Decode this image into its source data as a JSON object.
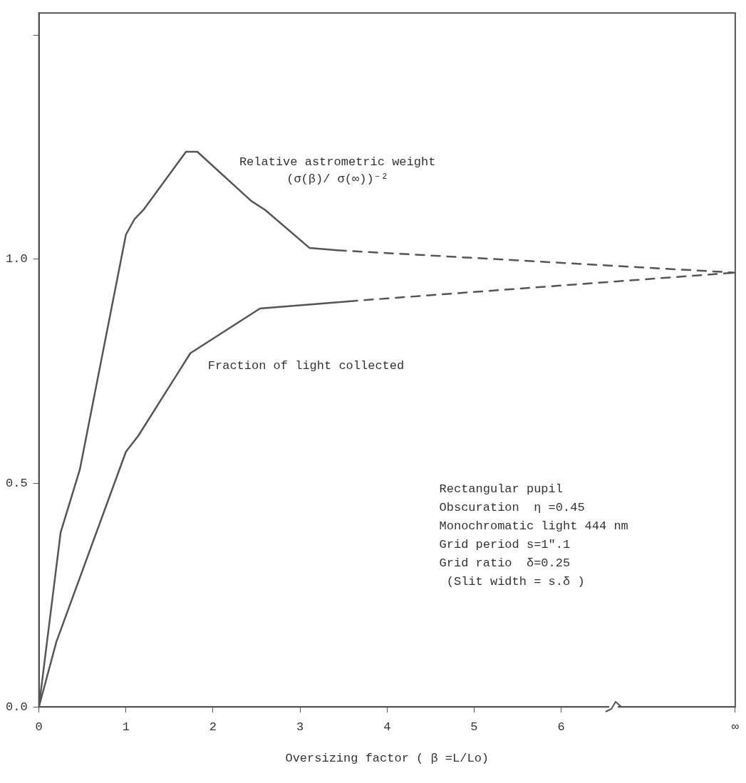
{
  "chart_data": {
    "type": "line",
    "xlabel": "Oversizing factor ( β =L/Lo)",
    "xlim": [
      0,
      8
    ],
    "xticks": [
      0,
      1,
      2,
      3,
      4,
      5,
      6,
      {
        "value": 8,
        "label": "∞"
      }
    ],
    "ylim": [
      0,
      1.55
    ],
    "yticks": [
      {
        "value": 0,
        "label": "0.0"
      },
      {
        "value": 0.5,
        "label": "0.5"
      },
      {
        "value": 1,
        "label": "1.0"
      },
      {
        "value": 1.5,
        "label": null
      }
    ],
    "grid": false,
    "legend": false,
    "marker": "none",
    "series": [
      {
        "name": "Relative astrometric weight (σ(β)/ σ(∞))⁻²",
        "color": "#555555",
        "line_style": "solid",
        "x": [
          0,
          0.25,
          0.47,
          1.0,
          1.1,
          1.2,
          1.69,
          1.82,
          2.44,
          2.6,
          3.11,
          3.43
        ],
        "values": [
          0,
          0.39,
          0.53,
          1.055,
          1.09,
          1.11,
          1.24,
          1.24,
          1.13,
          1.11,
          1.025,
          1.02
        ]
      },
      {
        "color": "#555555",
        "line_style": "dashed",
        "x": [
          3.43,
          8
        ],
        "values": [
          1.02,
          0.97
        ]
      },
      {
        "name": "Fraction of light collected",
        "color": "#555555",
        "line_style": "solid",
        "x": [
          0,
          0.2,
          1.0,
          1.14,
          1.74,
          2.54,
          3.56
        ],
        "values": [
          0,
          0.145,
          0.57,
          0.605,
          0.79,
          0.89,
          0.906
        ]
      },
      {
        "color": "#555555",
        "line_style": "dashed",
        "x": [
          3.56,
          8
        ],
        "values": [
          0.906,
          0.97
        ]
      }
    ],
    "annotations": [
      "Rectangular pupil",
      "Obscuration  η =0.45",
      "Monochromatic light 444 nm",
      "Grid period s=1\".1",
      "Grid ratio  δ=0.25",
      " (Slit width = s.δ )"
    ]
  }
}
